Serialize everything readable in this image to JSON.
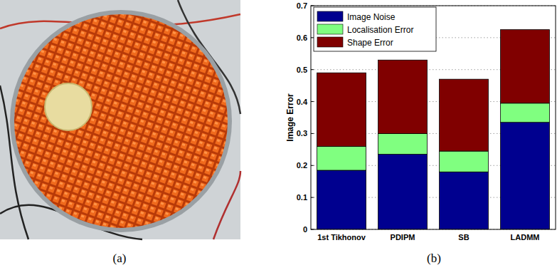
{
  "captions": [
    "(a)",
    "(b)"
  ],
  "chart_data": {
    "type": "bar",
    "stacked": true,
    "y_label": "Image Error",
    "categories": [
      "1st Tikhonov",
      "PDIPM",
      "SB",
      "LADMM"
    ],
    "series": [
      {
        "name": "Image Noise",
        "color": "#00008f",
        "values": [
          0.185,
          0.235,
          0.18,
          0.335
        ]
      },
      {
        "name": "Localisation Error",
        "color": "#80ff80",
        "values": [
          0.075,
          0.065,
          0.065,
          0.06
        ]
      },
      {
        "name": "Shape Error",
        "color": "#800000",
        "values": [
          0.23,
          0.23,
          0.225,
          0.23
        ]
      }
    ],
    "ylim": [
      0,
      0.7
    ],
    "yticks": [
      0,
      0.1,
      0.2,
      0.3,
      0.4,
      0.5,
      0.6,
      0.7
    ],
    "grid": true,
    "legend": "upper left"
  }
}
